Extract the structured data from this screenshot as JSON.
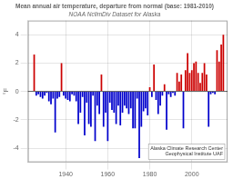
{
  "chart_data": {
    "type": "bar",
    "title": "Mean annual air temperature, departure from normal (base: 1981-2010)",
    "subtitle": "NOAA NclimDiv Dataset for Alaska",
    "y_label": "°F",
    "x": [
      1925,
      1926,
      1927,
      1928,
      1929,
      1930,
      1931,
      1932,
      1933,
      1934,
      1935,
      1936,
      1937,
      1938,
      1939,
      1940,
      1941,
      1942,
      1943,
      1944,
      1945,
      1946,
      1947,
      1948,
      1949,
      1950,
      1951,
      1952,
      1953,
      1954,
      1955,
      1956,
      1957,
      1958,
      1959,
      1960,
      1961,
      1962,
      1963,
      1964,
      1965,
      1966,
      1967,
      1968,
      1969,
      1970,
      1971,
      1972,
      1973,
      1974,
      1975,
      1976,
      1977,
      1978,
      1979,
      1980,
      1981,
      1982,
      1983,
      1984,
      1985,
      1986,
      1987,
      1988,
      1989,
      1990,
      1991,
      1992,
      1993,
      1994,
      1995,
      1996,
      1997,
      1998,
      1999,
      2000,
      2001,
      2002,
      2003,
      2004,
      2005,
      2006,
      2007,
      2008,
      2009,
      2010,
      2011,
      2012,
      2013,
      2014,
      2015
    ],
    "values": [
      2.6,
      -0.3,
      -0.2,
      -0.4,
      -0.5,
      -0.3,
      -0.1,
      -0.7,
      -0.9,
      -0.5,
      -2.9,
      -0.5,
      -0.4,
      2.0,
      -0.3,
      -0.5,
      -0.6,
      -0.7,
      -0.2,
      -0.3,
      -0.7,
      -2.3,
      -1.5,
      -0.4,
      -3.1,
      -0.8,
      -2.3,
      -2.5,
      -0.3,
      -3.5,
      -1.0,
      -1.6,
      1.2,
      -2.5,
      -1.5,
      -3.5,
      -0.8,
      -1.3,
      -1.5,
      -2.3,
      -1.0,
      -2.4,
      -1.5,
      -1.0,
      -1.2,
      -1.6,
      -1.2,
      -2.6,
      -2.6,
      -0.5,
      -4.7,
      -2.5,
      -1.4,
      -1.2,
      -1.7,
      0.3,
      -0.4,
      1.9,
      -0.6,
      -1.6,
      -1.0,
      -0.3,
      0.5,
      -2.7,
      -0.2,
      -0.4,
      -0.1,
      -0.3,
      1.3,
      0.7,
      1.2,
      -2.6,
      1.5,
      2.7,
      1.3,
      1.5,
      2.0,
      2.1,
      1.3,
      0.6,
      1.3,
      2.0,
      1.2,
      -2.5,
      -0.2,
      -0.1,
      -0.2,
      2.9,
      2.1,
      3.3,
      4.0
    ],
    "colors": [
      "#cc0000",
      "#0000cc",
      "#0000cc",
      "#0000cc",
      "#0000cc",
      "#0000cc",
      "#0000cc",
      "#0000cc",
      "#0000cc",
      "#0000cc",
      "#0000cc",
      "#0000cc",
      "#0000cc",
      "#cc0000",
      "#0000cc",
      "#0000cc",
      "#0000cc",
      "#0000cc",
      "#0000cc",
      "#0000cc",
      "#0000cc",
      "#0000cc",
      "#0000cc",
      "#0000cc",
      "#0000cc",
      "#0000cc",
      "#0000cc",
      "#0000cc",
      "#0000cc",
      "#0000cc",
      "#0000cc",
      "#0000cc",
      "#cc0000",
      "#0000cc",
      "#0000cc",
      "#0000cc",
      "#0000cc",
      "#0000cc",
      "#0000cc",
      "#0000cc",
      "#0000cc",
      "#0000cc",
      "#0000cc",
      "#0000cc",
      "#0000cc",
      "#0000cc",
      "#0000cc",
      "#0000cc",
      "#0000cc",
      "#0000cc",
      "#0000cc",
      "#0000cc",
      "#0000cc",
      "#0000cc",
      "#0000cc",
      "#cc0000",
      "#0000cc",
      "#cc0000",
      "#0000cc",
      "#0000cc",
      "#0000cc",
      "#0000cc",
      "#cc0000",
      "#0000cc",
      "#0000cc",
      "#0000cc",
      "#0000cc",
      "#0000cc",
      "#cc0000",
      "#cc0000",
      "#cc0000",
      "#0000cc",
      "#cc0000",
      "#cc0000",
      "#cc0000",
      "#cc0000",
      "#cc0000",
      "#cc0000",
      "#cc0000",
      "#cc0000",
      "#cc0000",
      "#cc0000",
      "#cc0000",
      "#0000cc",
      "#0000cc",
      "#0000cc",
      "#0000cc",
      "#cc0000",
      "#cc0000",
      "#cc0000",
      "#cc0000"
    ],
    "annotations": [
      "Alaska Climate Research Center",
      "Geophysical Institute UAF"
    ],
    "xlim": [
      1922,
      2017
    ],
    "xticks": [
      1940,
      1960,
      1980,
      2000
    ],
    "ylim": [
      -5,
      5
    ],
    "yticks": [
      -4,
      -2,
      0,
      2,
      4
    ],
    "grid": true
  }
}
